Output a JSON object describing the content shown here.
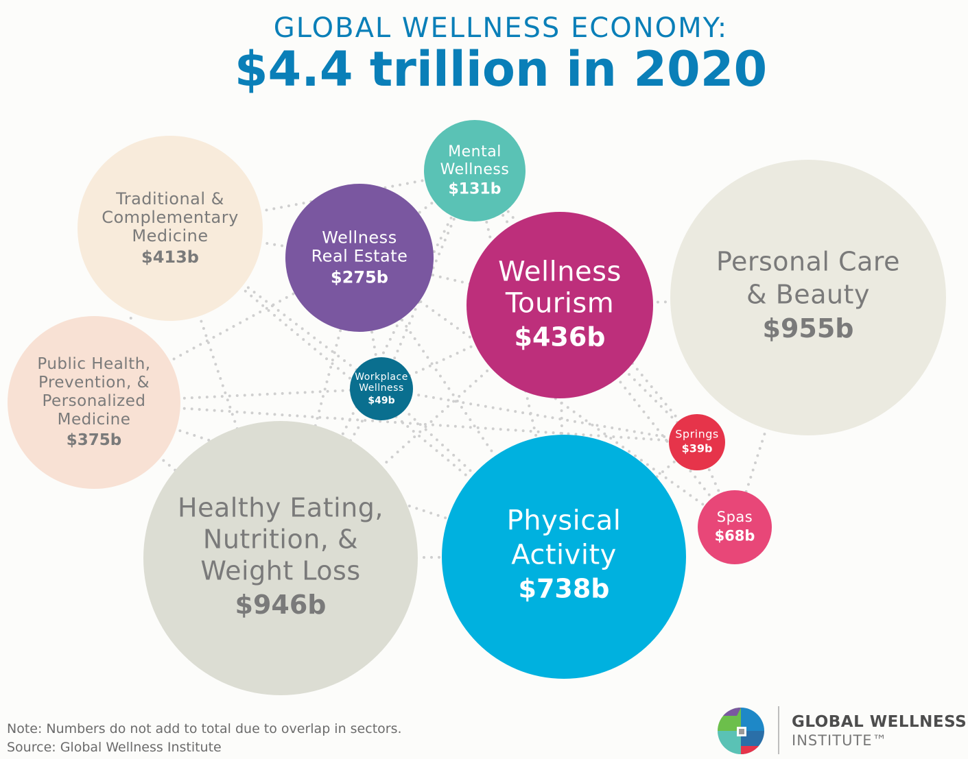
{
  "header": {
    "title": "GLOBAL WELLNESS ECONOMY:",
    "subtitle": "$4.4 trillion in 2020"
  },
  "chart_data": {
    "type": "bubble",
    "title": "GLOBAL WELLNESS ECONOMY:",
    "subtitle": "$4.4 trillion in 2020",
    "unit": "US$ billions",
    "total_label": "$4.4 trillion",
    "sectors": [
      {
        "name": "Traditional & Complementary Medicine",
        "lines": [
          "Traditional &",
          "Complementary",
          "Medicine"
        ],
        "value": 413,
        "label": "$413b",
        "color": "#f8ebdb",
        "text_color": "#7a7a7a"
      },
      {
        "name": "Wellness Real Estate",
        "lines": [
          "Wellness",
          "Real Estate"
        ],
        "value": 275,
        "label": "$275b",
        "color": "#7a57a0",
        "text_color": "#ffffff"
      },
      {
        "name": "Mental Wellness",
        "lines": [
          "Mental",
          "Wellness"
        ],
        "value": 131,
        "label": "$131b",
        "color": "#5ac2b5",
        "text_color": "#ffffff"
      },
      {
        "name": "Wellness Tourism",
        "lines": [
          "Wellness",
          "Tourism"
        ],
        "value": 436,
        "label": "$436b",
        "color": "#bd2f7b",
        "text_color": "#ffffff"
      },
      {
        "name": "Personal Care & Beauty",
        "lines": [
          "Personal Care",
          "& Beauty"
        ],
        "value": 955,
        "label": "$955b",
        "color": "#ebeae0",
        "text_color": "#7a7a7a"
      },
      {
        "name": "Public Health, Prevention, & Personalized Medicine",
        "lines": [
          "Public Health,",
          "Prevention, &",
          "Personalized",
          "Medicine"
        ],
        "value": 375,
        "label": "$375b",
        "color": "#f8e1d4",
        "text_color": "#7a7a7a"
      },
      {
        "name": "Workplace Wellness",
        "lines": [
          "Workplace",
          "Wellness"
        ],
        "value": 49,
        "label": "$49b",
        "color": "#0a6f8f",
        "text_color": "#ffffff"
      },
      {
        "name": "Springs",
        "lines": [
          "Springs"
        ],
        "value": 39,
        "label": "$39b",
        "color": "#e6344a",
        "text_color": "#ffffff"
      },
      {
        "name": "Spas",
        "lines": [
          "Spas"
        ],
        "value": 68,
        "label": "$68b",
        "color": "#e84778",
        "text_color": "#ffffff"
      },
      {
        "name": "Healthy Eating, Nutrition, & Weight Loss",
        "lines": [
          "Healthy Eating,",
          "Nutrition, &",
          "Weight Loss"
        ],
        "value": 946,
        "label": "$946b",
        "color": "#dcddd3",
        "text_color": "#7a7a7a"
      },
      {
        "name": "Physical Activity",
        "lines": [
          "Physical",
          "Activity"
        ],
        "value": 738,
        "label": "$738b",
        "color": "#00b1df",
        "text_color": "#ffffff"
      }
    ]
  },
  "footer": {
    "note": "Note: Numbers do not add to total due to overlap in sectors.",
    "source": "Source: Global Wellness Institute"
  },
  "logo": {
    "name": "GLOBAL WELLNESS",
    "sub": "INSTITUTE™"
  },
  "colors": {
    "title": "#0a7fb8",
    "dots": "#cfcfcf",
    "background": "#fcfcfa"
  }
}
